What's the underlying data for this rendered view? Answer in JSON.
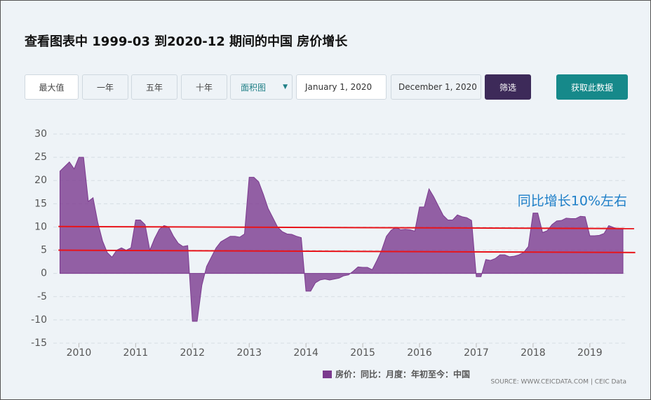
{
  "page": {
    "title": "查看图表中 1999-03 到2020-12 期间的中国 房价增长",
    "controls": {
      "range_buttons": [
        "最大值",
        "一年",
        "五年",
        "十年"
      ],
      "chart_type": "面积图",
      "start_date": "January 1, 2020",
      "end_date": "December 1, 2020",
      "filter": "筛选",
      "get_data": "获取此数据"
    },
    "source": "SOURCE: WWW.CEICDATA.COM | CEIC Data"
  },
  "chart_data": {
    "type": "area",
    "x": [
      2009.667,
      2009.75,
      2009.833,
      2009.917,
      2010,
      2010.083,
      2010.167,
      2010.25,
      2010.333,
      2010.417,
      2010.5,
      2010.583,
      2010.667,
      2010.75,
      2010.833,
      2010.917,
      2011,
      2011.083,
      2011.167,
      2011.25,
      2011.333,
      2011.417,
      2011.5,
      2011.583,
      2011.667,
      2011.75,
      2011.833,
      2011.917,
      2012,
      2012.083,
      2012.167,
      2012.25,
      2012.333,
      2012.417,
      2012.5,
      2012.583,
      2012.667,
      2012.75,
      2012.833,
      2012.917,
      2013,
      2013.083,
      2013.167,
      2013.25,
      2013.333,
      2013.417,
      2013.5,
      2013.583,
      2013.667,
      2013.75,
      2013.833,
      2013.917,
      2014,
      2014.083,
      2014.167,
      2014.25,
      2014.333,
      2014.417,
      2014.5,
      2014.583,
      2014.667,
      2014.75,
      2014.833,
      2014.917,
      2015,
      2015.083,
      2015.167,
      2015.25,
      2015.333,
      2015.417,
      2015.5,
      2015.583,
      2015.667,
      2015.75,
      2015.833,
      2015.917,
      2016,
      2016.083,
      2016.167,
      2016.25,
      2016.333,
      2016.417,
      2016.5,
      2016.583,
      2016.667,
      2016.75,
      2016.833,
      2016.917,
      2017,
      2017.083,
      2017.167,
      2017.25,
      2017.333,
      2017.417,
      2017.5,
      2017.583,
      2017.667,
      2017.75,
      2017.833,
      2017.917,
      2018,
      2018.083,
      2018.167,
      2018.25,
      2018.333,
      2018.417,
      2018.5,
      2018.583,
      2018.667,
      2018.75,
      2018.833,
      2018.917,
      2019,
      2019.083,
      2019.167,
      2019.25,
      2019.333,
      2019.417,
      2019.5,
      2019.583
    ],
    "series": [
      {
        "name": "房价：同比：月度：年初至今：中国",
        "color": "#7b3a8e",
        "values": [
          22,
          23,
          24,
          22.5,
          25,
          25,
          15.5,
          16.3,
          11,
          7,
          4.5,
          3.5,
          5,
          5.5,
          5,
          5.5,
          11.5,
          11.5,
          10.5,
          5,
          7.5,
          9.5,
          10.3,
          10,
          8,
          6.5,
          5.8,
          6,
          -10.3,
          -10.3,
          -2.5,
          1.5,
          3.5,
          5.5,
          6.8,
          7.4,
          8,
          8,
          7.8,
          8.5,
          20.7,
          20.7,
          19.7,
          17,
          14,
          12,
          10,
          9,
          8.5,
          8.4,
          8,
          7.7,
          -3.8,
          -3.8,
          -2,
          -1.4,
          -1.2,
          -1.4,
          -1.2,
          -1,
          -0.5,
          -0.3,
          0.5,
          1.4,
          1.3,
          1.3,
          0.8,
          2.8,
          5,
          8,
          9.3,
          9.9,
          9.4,
          9.5,
          9.4,
          9.1,
          14.3,
          14.3,
          18.2,
          16.5,
          14.5,
          12.5,
          11.5,
          11.5,
          12.6,
          12.2,
          12,
          11.4,
          -0.7,
          -0.7,
          3,
          2.8,
          3.2,
          4,
          4,
          3.6,
          3.7,
          4,
          4.5,
          5.8,
          13,
          13,
          8.8,
          9.2,
          10.5,
          11.3,
          11.4,
          11.9,
          11.8,
          11.8,
          12.3,
          12.2,
          8.1,
          8.1,
          8.2,
          8.6,
          10.3,
          9.9,
          9.6,
          9.6
        ]
      }
    ],
    "xlim": [
      2009.55,
      2019.62
    ],
    "xticks": [
      2010,
      2011,
      2012,
      2013,
      2014,
      2015,
      2016,
      2017,
      2018,
      2019
    ],
    "ylim": [
      -15,
      30
    ],
    "yticks": [
      -15,
      -10,
      -5,
      0,
      5,
      10,
      15,
      20,
      25,
      30
    ],
    "grid": true,
    "annotation": "同比增长10%左右",
    "annotation_lines": [
      {
        "x": [
          2009.64,
          2019.78
        ],
        "y": [
          10.1,
          9.65
        ],
        "color": "#e8141a"
      },
      {
        "x": [
          2009.64,
          2019.8
        ],
        "y": [
          5,
          4.5
        ],
        "color": "#e8141a"
      }
    ]
  }
}
